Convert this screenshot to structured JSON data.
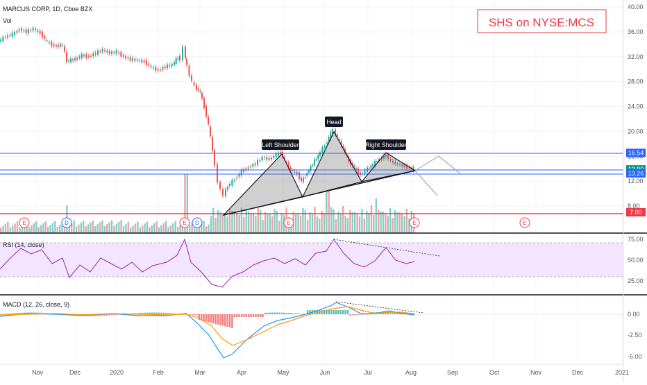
{
  "header": {
    "symbol_line": "MARCUS CORP, 1D, Cboe BZX",
    "vol_label": "Vol",
    "title_box": "SHS on NYSE:MCS"
  },
  "price_axis": {
    "ticks": [
      "40.00",
      "36.00",
      "32.00",
      "28.00",
      "24.00",
      "20.00",
      "16.00",
      "12.00",
      "8.00"
    ]
  },
  "price_tags": [
    {
      "text": "16.54",
      "value": 16.54,
      "color": "#2962ff"
    },
    {
      "text": "13.90",
      "value": 13.9,
      "color": "#089981"
    },
    {
      "text": "13.26",
      "value": 13.26,
      "color": "#2962ff"
    },
    {
      "text": "7.00",
      "value": 7.0,
      "color": "#f23645"
    }
  ],
  "pattern_labels": {
    "left": "Left Shoulder",
    "head": "Head",
    "right": "Right Shoulder"
  },
  "rsi": {
    "label": "RSI (14, close)",
    "ticks": [
      "75.00",
      "50.00",
      "25.00"
    ]
  },
  "macd": {
    "label": "MACD (12, 26, close, 9)",
    "ticks": [
      "0.00",
      "-2.50",
      "-5.00"
    ]
  },
  "time_axis": [
    "Nov",
    "Dec",
    "2020",
    "Feb",
    "Mar",
    "Apr",
    "May",
    "Jun",
    "Jul",
    "Aug",
    "Sep",
    "Oct",
    "Nov",
    "Dec",
    "2021"
  ],
  "event_markers": [
    "E",
    "D",
    "E",
    "D",
    "E",
    "E",
    "E"
  ],
  "chart_data": {
    "type": "line",
    "title": "SHS on NYSE:MCS",
    "x": [
      "Oct",
      "Nov",
      "Dec",
      "2020",
      "Feb",
      "Mar",
      "Apr",
      "May",
      "Jun",
      "Jul",
      "Aug"
    ],
    "series": [
      {
        "values": [
          34.5,
          35.5,
          32.0,
          32.8,
          31.5,
          22.0,
          11.5,
          11.0,
          20.5,
          16.5,
          14.0
        ]
      }
    ],
    "levels": [
      16.54,
      13.9,
      13.26,
      7.0
    ],
    "ylim": [
      6,
      41
    ]
  },
  "colors": {
    "up": "#26a69a",
    "down": "#ef5350",
    "blue_line": "#2962ff",
    "red_line": "#f23645",
    "rsi_fill": "#f3e5ff",
    "title_red": "#f23645"
  }
}
